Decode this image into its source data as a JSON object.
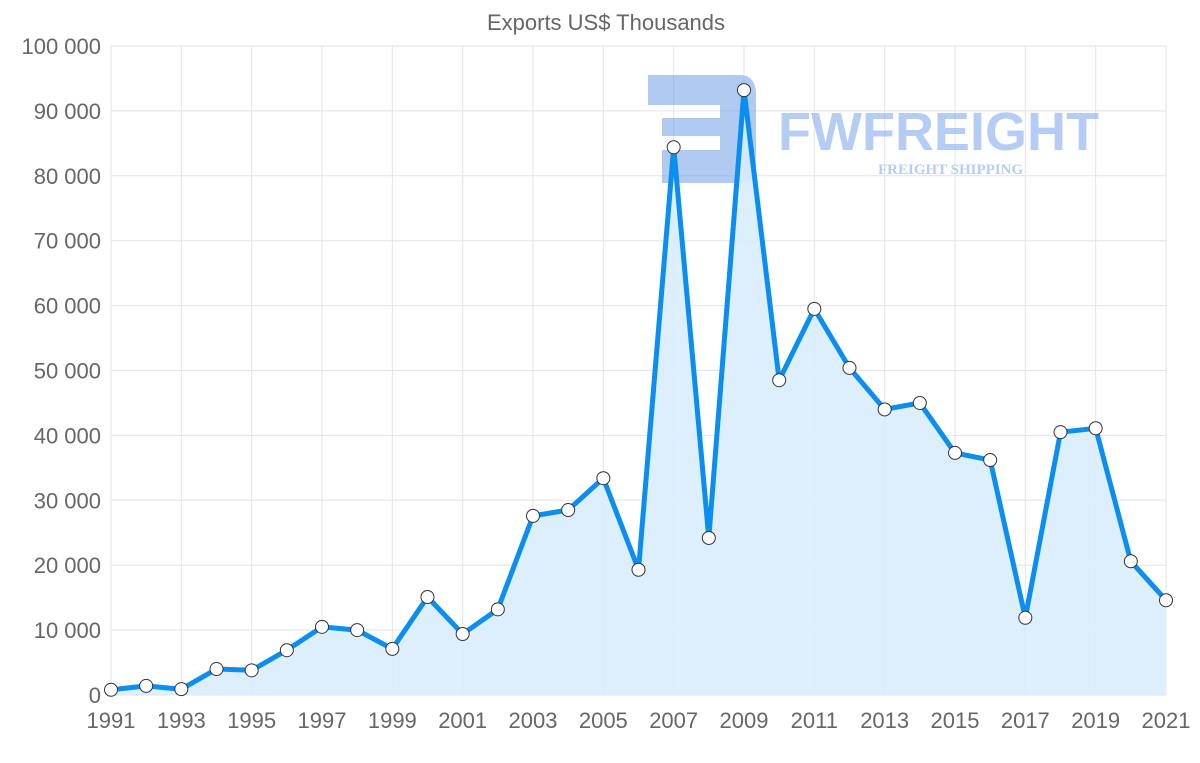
{
  "chart_data": {
    "type": "area",
    "title": "Exports US$ Thousands",
    "xlabel": "",
    "ylabel": "",
    "ylim": [
      0,
      100000
    ],
    "yticks": [
      "0",
      "10 000",
      "20 000",
      "30 000",
      "40 000",
      "50 000",
      "60 000",
      "70 000",
      "80 000",
      "90 000",
      "100 000"
    ],
    "xticks": [
      "1991",
      "1993",
      "1995",
      "1997",
      "1999",
      "2001",
      "2003",
      "2005",
      "2007",
      "2009",
      "2011",
      "2013",
      "2015",
      "2017",
      "2019",
      "2021"
    ],
    "grid": true,
    "series": [
      {
        "name": "Exports",
        "color": "#0a8ef0",
        "fill": "#d9ecfc",
        "x": [
          1991,
          1992,
          1993,
          1994,
          1995,
          1996,
          1997,
          1998,
          1999,
          2000,
          2001,
          2002,
          2003,
          2004,
          2005,
          2006,
          2007,
          2008,
          2009,
          2010,
          2011,
          2012,
          2013,
          2014,
          2015,
          2016,
          2017,
          2018,
          2019,
          2020,
          2021
        ],
        "values": [
          800,
          1400,
          900,
          4000,
          3800,
          6900,
          10500,
          10000,
          7100,
          15100,
          9400,
          13200,
          27600,
          28500,
          33400,
          19300,
          84400,
          24200,
          93200,
          48500,
          59500,
          50400,
          44000,
          45000,
          37300,
          36200,
          11900,
          40500,
          41100,
          20600,
          14600
        ]
      }
    ]
  },
  "watermark": {
    "brand": "FWFREIGHT",
    "tagline": "FREIGHT SHIPPING"
  }
}
